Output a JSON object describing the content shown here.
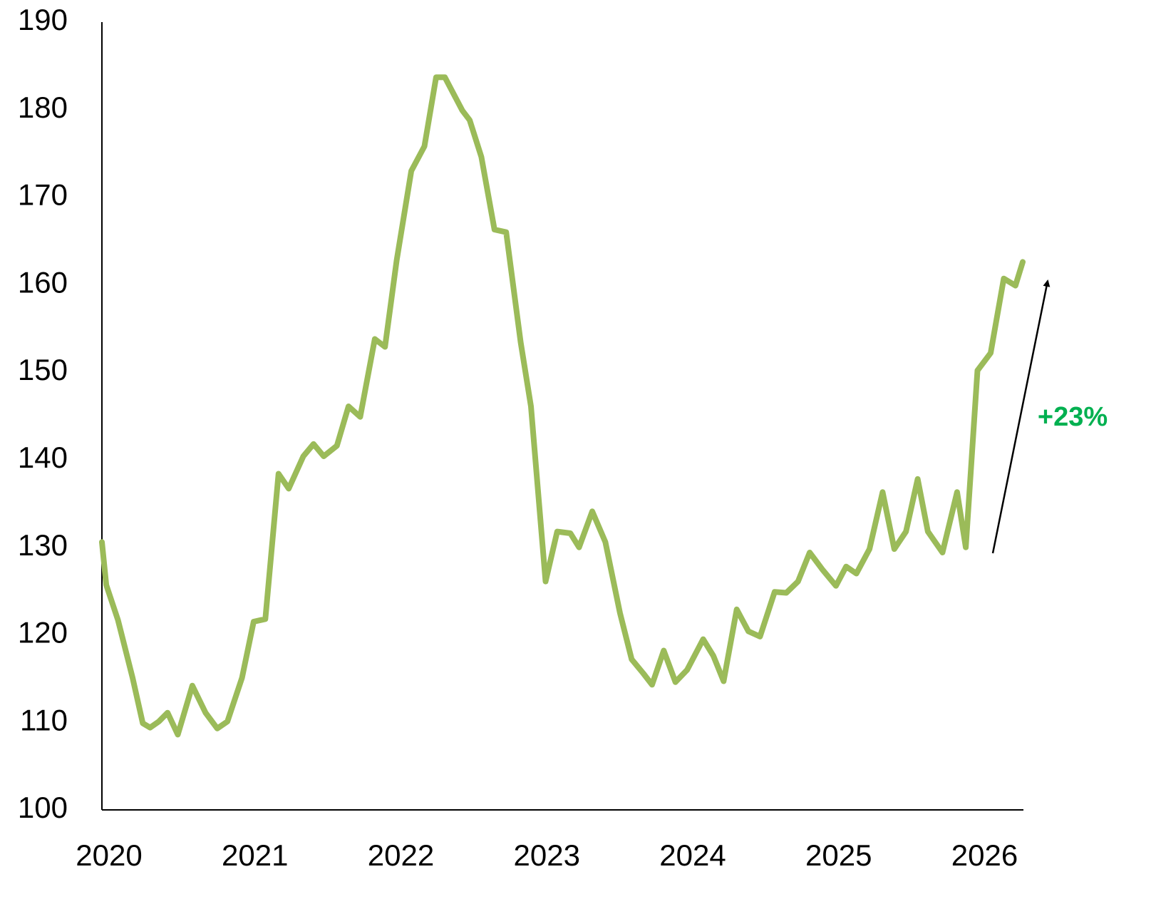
{
  "chart_data": {
    "type": "line",
    "annotation": "+23%",
    "x": [
      2020.0,
      2020.03,
      2020.11,
      2020.21,
      2020.28,
      2020.33,
      2020.39,
      2020.45,
      2020.52,
      2020.62,
      2020.71,
      2020.79,
      2020.86,
      2020.96,
      2021.04,
      2021.12,
      2021.21,
      2021.28,
      2021.38,
      2021.45,
      2021.52,
      2021.61,
      2021.69,
      2021.77,
      2021.87,
      2021.94,
      2022.02,
      2022.12,
      2022.21,
      2022.29,
      2022.35,
      2022.47,
      2022.52,
      2022.6,
      2022.69,
      2022.77,
      2022.87,
      2022.94,
      2023.04,
      2023.12,
      2023.21,
      2023.27,
      2023.36,
      2023.45,
      2023.55,
      2023.63,
      2023.71,
      2023.77,
      2023.85,
      2023.93,
      2024.01,
      2024.12,
      2024.19,
      2024.26,
      2024.35,
      2024.43,
      2024.51,
      2024.61,
      2024.69,
      2024.77,
      2024.85,
      2024.94,
      2025.03,
      2025.1,
      2025.17,
      2025.26,
      2025.35,
      2025.43,
      2025.51,
      2025.59,
      2025.66,
      2025.76,
      2025.86,
      2025.92,
      2026.0,
      2026.09,
      2026.18,
      2026.26,
      2026.31
    ],
    "values": [
      130.6,
      125.7,
      121.7,
      115.1,
      109.9,
      109.4,
      110.1,
      111.1,
      108.6,
      114.2,
      111.1,
      109.3,
      110.1,
      115.1,
      121.5,
      121.8,
      138.4,
      136.7,
      140.4,
      141.8,
      140.4,
      141.6,
      146.1,
      144.9,
      153.8,
      152.9,
      162.8,
      173.0,
      175.8,
      183.7,
      183.7,
      179.9,
      178.8,
      174.6,
      166.3,
      166.0,
      153.4,
      146.1,
      126.1,
      131.8,
      131.6,
      130.0,
      134.1,
      130.6,
      122.5,
      117.2,
      115.6,
      114.3,
      118.2,
      114.6,
      116.0,
      119.5,
      117.6,
      114.7,
      122.9,
      120.4,
      119.8,
      124.9,
      124.8,
      126.1,
      129.4,
      127.4,
      125.6,
      127.8,
      127.0,
      129.8,
      136.3,
      129.8,
      131.8,
      137.8,
      131.8,
      129.4,
      136.3,
      130.0,
      150.2,
      152.2,
      160.7,
      159.9,
      162.6
    ],
    "color": "#9bbb59",
    "xlim": [
      2020,
      2026.31
    ],
    "xticks": [
      2020,
      2021,
      2022,
      2023,
      2024,
      2025,
      2026
    ],
    "ylim": [
      100,
      190
    ],
    "yticks": [
      100,
      110,
      120,
      130,
      140,
      150,
      160,
      170,
      180,
      190
    ],
    "grid": false
  }
}
